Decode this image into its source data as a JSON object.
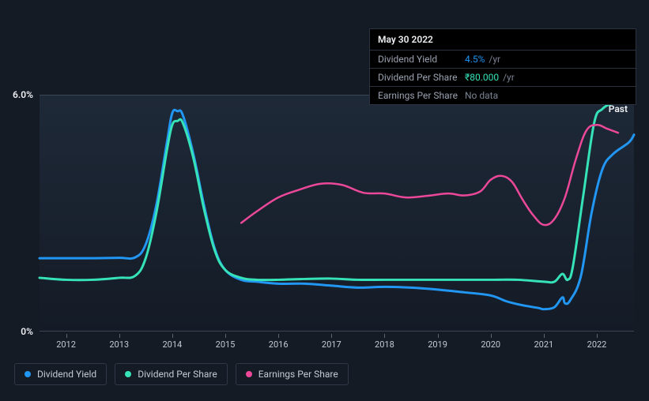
{
  "chart": {
    "type": "line",
    "background_gradient_top": "#1e2938",
    "background_gradient_bottom": "#141b26",
    "grid_color": "#3a4556",
    "ylim": [
      0,
      6
    ],
    "y_labels": [
      {
        "value": 6.0,
        "text": "6.0%"
      },
      {
        "value": 0,
        "text": "0%"
      }
    ],
    "x_years": [
      2012,
      2013,
      2014,
      2015,
      2016,
      2017,
      2018,
      2019,
      2020,
      2021,
      2022
    ],
    "x_range": [
      2011.5,
      2022.7
    ],
    "past_label": "Past",
    "label_fontsize": 11,
    "axis_text_color": "#c4c9d4",
    "series": {
      "dividend_yield": {
        "color": "#2196f3",
        "width": 3,
        "points": [
          [
            2011.5,
            1.85
          ],
          [
            2012.0,
            1.85
          ],
          [
            2012.5,
            1.85
          ],
          [
            2013.0,
            1.86
          ],
          [
            2013.3,
            1.87
          ],
          [
            2013.5,
            2.2
          ],
          [
            2013.7,
            3.2
          ],
          [
            2013.9,
            4.8
          ],
          [
            2014.0,
            5.55
          ],
          [
            2014.1,
            5.6
          ],
          [
            2014.2,
            5.5
          ],
          [
            2014.4,
            4.5
          ],
          [
            2014.6,
            3.2
          ],
          [
            2014.8,
            2.1
          ],
          [
            2015.0,
            1.55
          ],
          [
            2015.3,
            1.3
          ],
          [
            2015.6,
            1.25
          ],
          [
            2016.0,
            1.2
          ],
          [
            2016.5,
            1.2
          ],
          [
            2017.0,
            1.15
          ],
          [
            2017.5,
            1.1
          ],
          [
            2018.0,
            1.12
          ],
          [
            2018.5,
            1.1
          ],
          [
            2019.0,
            1.05
          ],
          [
            2019.5,
            0.98
          ],
          [
            2020.0,
            0.9
          ],
          [
            2020.3,
            0.75
          ],
          [
            2020.6,
            0.65
          ],
          [
            2020.9,
            0.58
          ],
          [
            2021.0,
            0.55
          ],
          [
            2021.2,
            0.6
          ],
          [
            2021.35,
            0.85
          ],
          [
            2021.4,
            0.7
          ],
          [
            2021.5,
            0.78
          ],
          [
            2021.7,
            1.4
          ],
          [
            2021.9,
            3.0
          ],
          [
            2022.1,
            4.1
          ],
          [
            2022.3,
            4.5
          ],
          [
            2022.6,
            4.8
          ],
          [
            2022.7,
            5.0
          ]
        ]
      },
      "dividend_per_share": {
        "color": "#36e3b8",
        "width": 3,
        "points": [
          [
            2011.5,
            1.35
          ],
          [
            2012.0,
            1.3
          ],
          [
            2012.5,
            1.3
          ],
          [
            2013.0,
            1.35
          ],
          [
            2013.3,
            1.4
          ],
          [
            2013.5,
            1.85
          ],
          [
            2013.7,
            3.0
          ],
          [
            2013.9,
            4.6
          ],
          [
            2014.0,
            5.25
          ],
          [
            2014.1,
            5.35
          ],
          [
            2014.2,
            5.3
          ],
          [
            2014.4,
            4.4
          ],
          [
            2014.6,
            3.1
          ],
          [
            2014.8,
            2.05
          ],
          [
            2015.0,
            1.55
          ],
          [
            2015.3,
            1.35
          ],
          [
            2015.6,
            1.3
          ],
          [
            2016.0,
            1.3
          ],
          [
            2016.5,
            1.32
          ],
          [
            2017.0,
            1.33
          ],
          [
            2017.5,
            1.3
          ],
          [
            2018.0,
            1.3
          ],
          [
            2018.5,
            1.3
          ],
          [
            2019.0,
            1.3
          ],
          [
            2019.5,
            1.3
          ],
          [
            2020.0,
            1.3
          ],
          [
            2020.5,
            1.3
          ],
          [
            2021.0,
            1.25
          ],
          [
            2021.2,
            1.25
          ],
          [
            2021.35,
            1.45
          ],
          [
            2021.45,
            1.3
          ],
          [
            2021.55,
            1.65
          ],
          [
            2021.75,
            3.5
          ],
          [
            2021.95,
            5.3
          ],
          [
            2022.1,
            5.65
          ],
          [
            2022.3,
            5.8
          ],
          [
            2022.6,
            5.88
          ],
          [
            2022.7,
            5.95
          ]
        ]
      },
      "earnings_per_share": {
        "color": "#ec4899",
        "width": 2.5,
        "points": [
          [
            2015.3,
            2.75
          ],
          [
            2015.6,
            3.05
          ],
          [
            2016.0,
            3.4
          ],
          [
            2016.4,
            3.6
          ],
          [
            2016.8,
            3.75
          ],
          [
            2017.2,
            3.72
          ],
          [
            2017.6,
            3.52
          ],
          [
            2018.0,
            3.5
          ],
          [
            2018.4,
            3.4
          ],
          [
            2018.8,
            3.44
          ],
          [
            2019.2,
            3.5
          ],
          [
            2019.5,
            3.45
          ],
          [
            2019.8,
            3.55
          ],
          [
            2020.0,
            3.85
          ],
          [
            2020.2,
            3.95
          ],
          [
            2020.4,
            3.8
          ],
          [
            2020.6,
            3.35
          ],
          [
            2020.8,
            2.95
          ],
          [
            2021.0,
            2.7
          ],
          [
            2021.2,
            2.85
          ],
          [
            2021.4,
            3.4
          ],
          [
            2021.6,
            4.35
          ],
          [
            2021.8,
            5.1
          ],
          [
            2022.0,
            5.25
          ],
          [
            2022.2,
            5.15
          ],
          [
            2022.4,
            5.05
          ]
        ]
      }
    }
  },
  "legend": {
    "items": [
      {
        "label": "Dividend Yield",
        "color": "#2196f3"
      },
      {
        "label": "Dividend Per Share",
        "color": "#36e3b8"
      },
      {
        "label": "Earnings Per Share",
        "color": "#ec4899"
      }
    ]
  },
  "tooltip": {
    "date": "May 30 2022",
    "rows": [
      {
        "label": "Dividend Yield",
        "value": "4.5%",
        "unit": "/yr",
        "value_color": "#2196f3"
      },
      {
        "label": "Dividend Per Share",
        "value": "₹80.000",
        "unit": "/yr",
        "value_color": "#36e3b8"
      },
      {
        "label": "Earnings Per Share",
        "value": "No data",
        "unit": "",
        "value_color": "#7a8293"
      }
    ]
  }
}
